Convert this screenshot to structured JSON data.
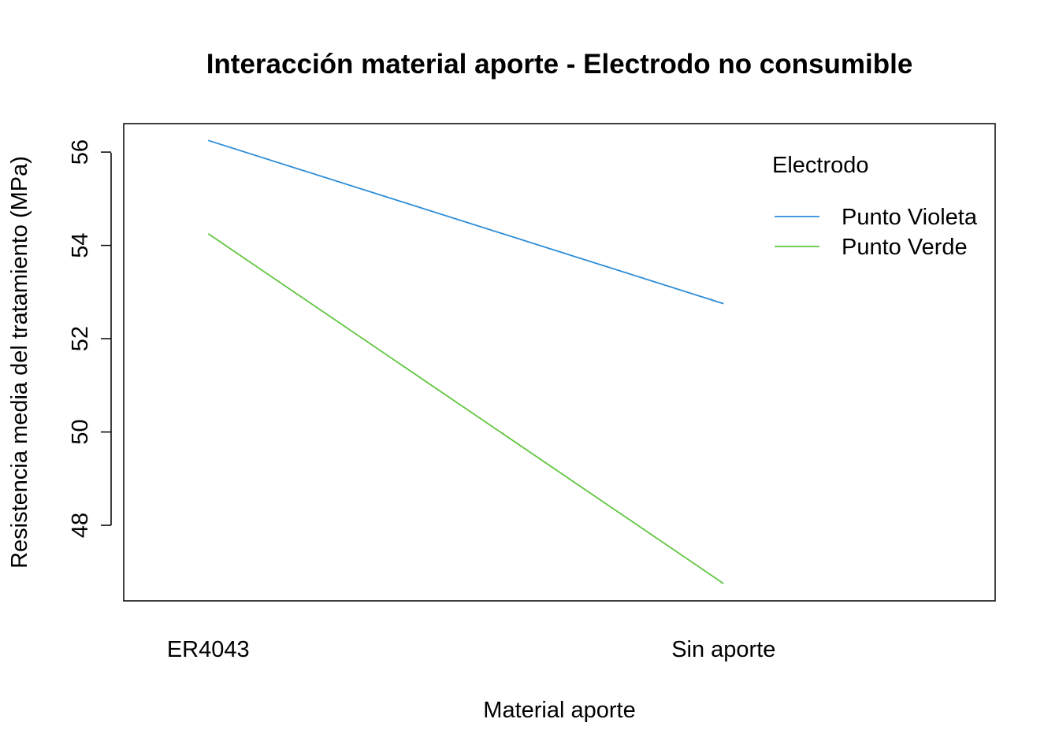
{
  "chart_data": {
    "type": "line",
    "title": "Interacción material aporte - Electrodo no consumible",
    "xlabel": "Material aporte",
    "ylabel": "Resistencia media del tratamiento (MPa)",
    "categories": [
      "ER4043",
      "Sin aporte"
    ],
    "yticks": [
      48,
      50,
      52,
      54,
      56
    ],
    "ylim": [
      46.38,
      56.61
    ],
    "xlim": [
      0.836,
      2.527
    ],
    "grid": false,
    "legend": {
      "title": "Electrodo",
      "placement": "top-right"
    },
    "series": [
      {
        "name": "Punto Violeta",
        "color": "#2b8cd8",
        "values": [
          56.25,
          52.75
        ]
      },
      {
        "name": "Punto Verde",
        "color": "#61c640",
        "values": [
          54.25,
          46.75
        ]
      }
    ]
  }
}
